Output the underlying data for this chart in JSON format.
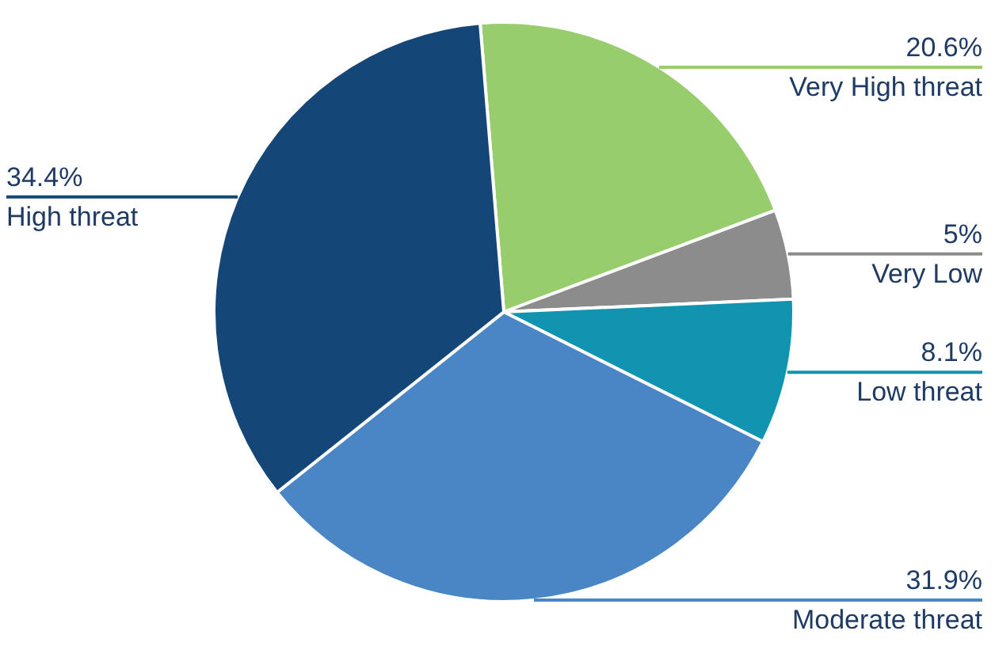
{
  "chart_data": {
    "type": "pie",
    "categories": [
      "Very High threat",
      "Very Low",
      "Low threat",
      "Moderate threat",
      "High threat"
    ],
    "values": [
      20.6,
      5,
      8.1,
      31.9,
      34.4
    ],
    "value_labels": [
      "20.6%",
      "5%",
      "8.1%",
      "31.9%",
      "34.4%"
    ],
    "colors": [
      "#98cd6e",
      "#8c8c8c",
      "#1094b0",
      "#4a86c6",
      "#144677"
    ]
  }
}
